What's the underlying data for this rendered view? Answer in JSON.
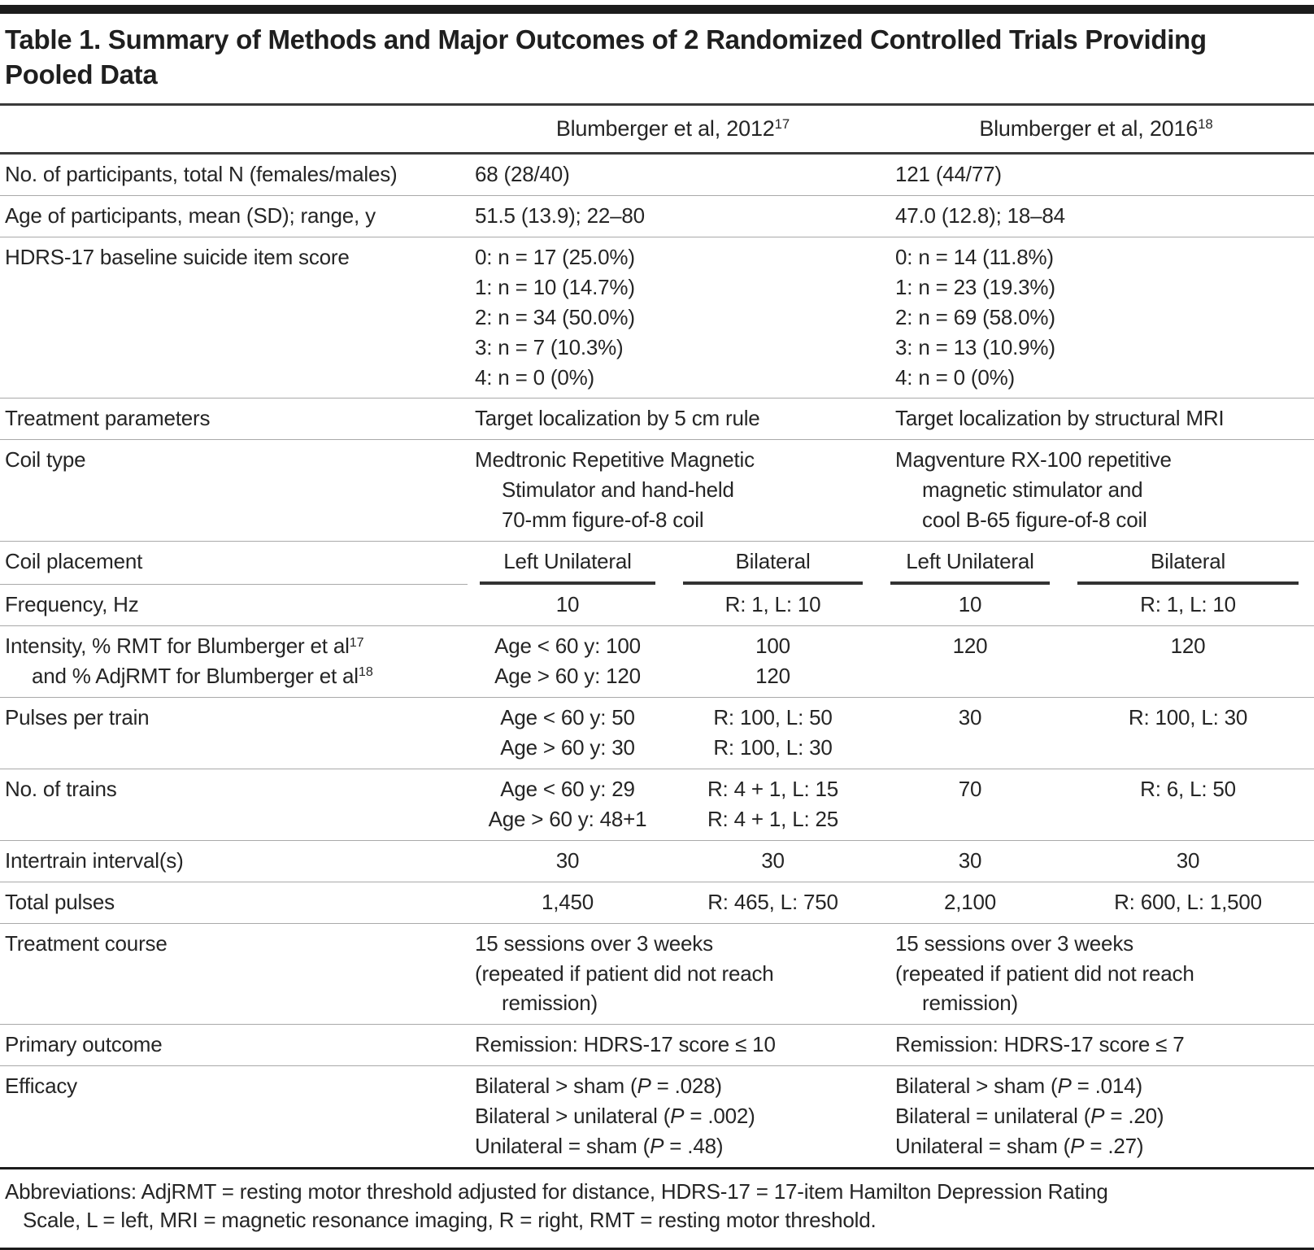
{
  "title": {
    "lines": [
      "Table 1. Summary of Methods and Major Outcomes of 2 Randomized Controlled Trials Providing",
      "Pooled Data"
    ]
  },
  "table": {
    "groups": [
      {
        "label": "Blumberger et al, 2012",
        "sup": "17"
      },
      {
        "label": "Blumberger et al, 2016",
        "sup": "18"
      }
    ],
    "rows": [
      {
        "type": "group",
        "label": [
          {
            "p": [
              {
                "t": "No. of participants, total N (females/males)"
              }
            ]
          }
        ],
        "cells": [
          [
            {
              "p": [
                {
                  "t": "68 (28/40)"
                }
              ]
            }
          ],
          [
            {
              "p": [
                {
                  "t": "121 (44/77)"
                }
              ]
            }
          ]
        ]
      },
      {
        "type": "group",
        "label": [
          {
            "p": [
              {
                "t": "Age of participants, mean (SD); range, y"
              }
            ]
          }
        ],
        "cells": [
          [
            {
              "p": [
                {
                  "t": "51.5 (13.9); 22–80"
                }
              ]
            }
          ],
          [
            {
              "p": [
                {
                  "t": "47.0 (12.8); 18–84"
                }
              ]
            }
          ]
        ]
      },
      {
        "type": "group",
        "label": [
          {
            "p": [
              {
                "t": "HDRS-17 baseline suicide item score"
              }
            ]
          }
        ],
        "cells": [
          [
            {
              "p": [
                {
                  "t": "0: n = 17 (25.0%)"
                }
              ]
            },
            {
              "p": [
                {
                  "t": "1: n = 10 (14.7%)"
                }
              ]
            },
            {
              "p": [
                {
                  "t": "2: n = 34 (50.0%)"
                }
              ]
            },
            {
              "p": [
                {
                  "t": "3: n = 7 (10.3%)"
                }
              ]
            },
            {
              "p": [
                {
                  "t": "4: n = 0 (0%)"
                }
              ]
            }
          ],
          [
            {
              "p": [
                {
                  "t": "0: n = 14 (11.8%)"
                }
              ]
            },
            {
              "p": [
                {
                  "t": "1: n = 23 (19.3%)"
                }
              ]
            },
            {
              "p": [
                {
                  "t": "2: n = 69 (58.0%)"
                }
              ]
            },
            {
              "p": [
                {
                  "t": "3: n = 13 (10.9%)"
                }
              ]
            },
            {
              "p": [
                {
                  "t": "4: n = 0 (0%)"
                }
              ]
            }
          ]
        ]
      },
      {
        "type": "group",
        "label": [
          {
            "p": [
              {
                "t": "Treatment parameters"
              }
            ]
          }
        ],
        "cells": [
          [
            {
              "p": [
                {
                  "t": "Target localization by 5 cm rule"
                }
              ]
            }
          ],
          [
            {
              "p": [
                {
                  "t": "Target localization by structural MRI"
                }
              ]
            }
          ]
        ]
      },
      {
        "type": "group",
        "label": [
          {
            "p": [
              {
                "t": "Coil type"
              }
            ]
          }
        ],
        "cells": [
          [
            {
              "p": [
                {
                  "t": "Medtronic Repetitive Magnetic"
                }
              ]
            },
            {
              "ind": 1,
              "p": [
                {
                  "t": "Stimulator and hand-held"
                }
              ]
            },
            {
              "ind": 1,
              "p": [
                {
                  "t": "70-mm figure-of-8 coil"
                }
              ]
            }
          ],
          [
            {
              "p": [
                {
                  "t": "Magventure RX-100 repetitive"
                }
              ]
            },
            {
              "ind": 1,
              "p": [
                {
                  "t": "magnetic stimulator and"
                }
              ]
            },
            {
              "ind": 1,
              "p": [
                {
                  "t": "cool B-65 figure-of-8 coil"
                }
              ]
            }
          ]
        ]
      },
      {
        "type": "subheader",
        "label": [
          {
            "p": [
              {
                "t": "Coil placement"
              }
            ]
          }
        ],
        "cells": [
          "Left Unilateral",
          "Bilateral",
          "Left Unilateral",
          "Bilateral"
        ]
      },
      {
        "type": "sub",
        "label": [
          {
            "p": [
              {
                "t": "Frequency, Hz"
              }
            ]
          }
        ],
        "cells": [
          [
            {
              "p": [
                {
                  "t": "10"
                }
              ]
            }
          ],
          [
            {
              "p": [
                {
                  "t": "R: 1, L: 10"
                }
              ]
            }
          ],
          [
            {
              "p": [
                {
                  "t": "10"
                }
              ]
            }
          ],
          [
            {
              "p": [
                {
                  "t": "R: 1, L: 10"
                }
              ]
            }
          ]
        ]
      },
      {
        "type": "sub",
        "label": [
          {
            "p": [
              {
                "t": "Intensity, % RMT for Blumberger et al"
              },
              {
                "t": "17",
                "sup": 1
              }
            ]
          },
          {
            "ind": 1,
            "p": [
              {
                "t": "and % AdjRMT for Blumberger et al"
              },
              {
                "t": "18",
                "sup": 1
              }
            ]
          }
        ],
        "cells": [
          [
            {
              "p": [
                {
                  "t": "Age < 60 y: 100"
                }
              ]
            },
            {
              "p": [
                {
                  "t": "Age > 60 y: 120"
                }
              ]
            }
          ],
          [
            {
              "p": [
                {
                  "t": "100"
                }
              ]
            },
            {
              "p": [
                {
                  "t": "120"
                }
              ]
            }
          ],
          [
            {
              "p": [
                {
                  "t": "120"
                }
              ]
            }
          ],
          [
            {
              "p": [
                {
                  "t": "120"
                }
              ]
            }
          ]
        ]
      },
      {
        "type": "sub",
        "label": [
          {
            "p": [
              {
                "t": "Pulses per train"
              }
            ]
          }
        ],
        "cells": [
          [
            {
              "p": [
                {
                  "t": "Age < 60 y: 50"
                }
              ]
            },
            {
              "p": [
                {
                  "t": "Age > 60 y: 30"
                }
              ]
            }
          ],
          [
            {
              "p": [
                {
                  "t": "R: 100, L: 50"
                }
              ]
            },
            {
              "p": [
                {
                  "t": "R: 100, L: 30"
                }
              ]
            }
          ],
          [
            {
              "p": [
                {
                  "t": "30"
                }
              ]
            }
          ],
          [
            {
              "p": [
                {
                  "t": "R: 100, L: 30"
                }
              ]
            }
          ]
        ]
      },
      {
        "type": "sub",
        "label": [
          {
            "p": [
              {
                "t": "No. of trains"
              }
            ]
          }
        ],
        "cells": [
          [
            {
              "p": [
                {
                  "t": "Age < 60 y: 29"
                }
              ]
            },
            {
              "p": [
                {
                  "t": "Age > 60 y: 48+1"
                }
              ]
            }
          ],
          [
            {
              "p": [
                {
                  "t": "R: 4 + 1, L: 15"
                }
              ]
            },
            {
              "p": [
                {
                  "t": "R: 4 + 1, L: 25"
                }
              ]
            }
          ],
          [
            {
              "p": [
                {
                  "t": "70"
                }
              ]
            }
          ],
          [
            {
              "p": [
                {
                  "t": "R: 6, L: 50"
                }
              ]
            }
          ]
        ]
      },
      {
        "type": "sub",
        "label": [
          {
            "p": [
              {
                "t": "Intertrain interval(s)"
              }
            ]
          }
        ],
        "cells": [
          [
            {
              "p": [
                {
                  "t": "30"
                }
              ]
            }
          ],
          [
            {
              "p": [
                {
                  "t": "30"
                }
              ]
            }
          ],
          [
            {
              "p": [
                {
                  "t": "30"
                }
              ]
            }
          ],
          [
            {
              "p": [
                {
                  "t": "30"
                }
              ]
            }
          ]
        ]
      },
      {
        "type": "sub",
        "label": [
          {
            "p": [
              {
                "t": "Total pulses"
              }
            ]
          }
        ],
        "cells": [
          [
            {
              "p": [
                {
                  "t": "1,450"
                }
              ]
            }
          ],
          [
            {
              "p": [
                {
                  "t": "R: 465, L: 750"
                }
              ]
            }
          ],
          [
            {
              "p": [
                {
                  "t": "2,100"
                }
              ]
            }
          ],
          [
            {
              "p": [
                {
                  "t": "R: 600, L: 1,500"
                }
              ]
            }
          ]
        ]
      },
      {
        "type": "group",
        "label": [
          {
            "p": [
              {
                "t": "Treatment course"
              }
            ]
          }
        ],
        "cells": [
          [
            {
              "p": [
                {
                  "t": "15 sessions over 3 weeks"
                }
              ]
            },
            {
              "p": [
                {
                  "t": "(repeated if patient did not reach"
                }
              ]
            },
            {
              "ind": 1,
              "p": [
                {
                  "t": "remission)"
                }
              ]
            }
          ],
          [
            {
              "p": [
                {
                  "t": "15 sessions over 3 weeks"
                }
              ]
            },
            {
              "p": [
                {
                  "t": "(repeated if patient did not reach"
                }
              ]
            },
            {
              "ind": 1,
              "p": [
                {
                  "t": "remission)"
                }
              ]
            }
          ]
        ]
      },
      {
        "type": "group",
        "label": [
          {
            "p": [
              {
                "t": "Primary outcome"
              }
            ]
          }
        ],
        "cells": [
          [
            {
              "p": [
                {
                  "t": "Remission: HDRS-17 score ≤ 10"
                }
              ]
            }
          ],
          [
            {
              "p": [
                {
                  "t": "Remission: HDRS-17 score ≤ 7"
                }
              ]
            }
          ]
        ]
      },
      {
        "type": "group",
        "label": [
          {
            "p": [
              {
                "t": "Efficacy"
              }
            ]
          }
        ],
        "cells": [
          [
            {
              "p": [
                {
                  "t": "Bilateral > sham ("
                },
                {
                  "t": "P",
                  "i": 1
                },
                {
                  "t": " = .028)"
                }
              ]
            },
            {
              "p": [
                {
                  "t": "Bilateral > unilateral ("
                },
                {
                  "t": "P",
                  "i": 1
                },
                {
                  "t": " = .002)"
                }
              ]
            },
            {
              "p": [
                {
                  "t": "Unilateral = sham ("
                },
                {
                  "t": "P",
                  "i": 1
                },
                {
                  "t": " = .48)"
                }
              ]
            }
          ],
          [
            {
              "p": [
                {
                  "t": "Bilateral > sham ("
                },
                {
                  "t": "P",
                  "i": 1
                },
                {
                  "t": " = .014)"
                }
              ]
            },
            {
              "p": [
                {
                  "t": "Bilateral = unilateral ("
                },
                {
                  "t": "P",
                  "i": 1
                },
                {
                  "t": " = .20)"
                }
              ]
            },
            {
              "p": [
                {
                  "t": "Unilateral = sham ("
                },
                {
                  "t": "P",
                  "i": 1
                },
                {
                  "t": " = .27)"
                }
              ]
            }
          ]
        ]
      }
    ]
  },
  "footnote": {
    "lines": [
      "Abbreviations: AdjRMT = resting motor threshold adjusted for distance, HDRS-17 = 17-item Hamilton Depression Rating",
      "Scale, L = left, MRI = magnetic resonance imaging, R = right, RMT = resting motor threshold."
    ]
  },
  "colors": {
    "rule_heavy": "#1c1c1c",
    "rule_medium": "#3a3a3a",
    "rule_light": "#a9a9a9",
    "text": "#252525"
  }
}
